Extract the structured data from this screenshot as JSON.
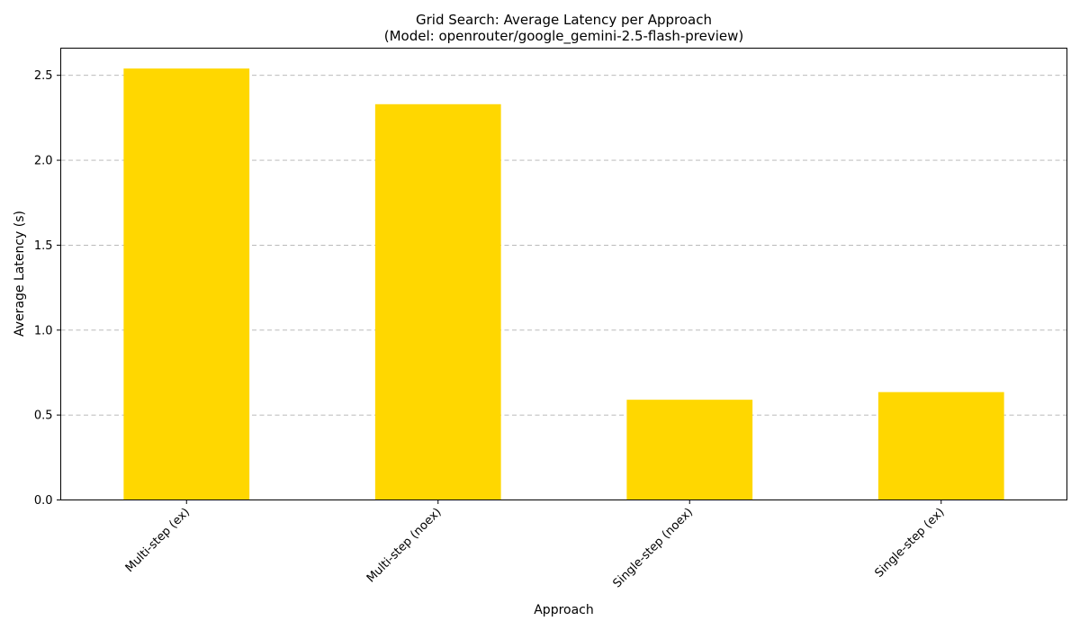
{
  "chart_data": {
    "type": "bar",
    "title": "Grid Search: Average Latency per Approach",
    "subtitle": "(Model: openrouter/google_gemini-2.5-flash-preview)",
    "xlabel": "Approach",
    "ylabel": "Average Latency (s)",
    "categories": [
      "Multi-step (ex)",
      "Multi-step (noex)",
      "Single-step (noex)",
      "Single-step (ex)"
    ],
    "values": [
      2.54,
      2.33,
      0.59,
      0.635
    ],
    "ylim": [
      0,
      2.66
    ],
    "yticks": [
      0.0,
      0.5,
      1.0,
      1.5,
      2.0,
      2.5
    ],
    "ytick_labels": [
      "0.0",
      "0.5",
      "1.0",
      "1.5",
      "2.0",
      "2.5"
    ],
    "grid": "y-dashed",
    "legend": "none",
    "bar_color": "#ffd700"
  }
}
